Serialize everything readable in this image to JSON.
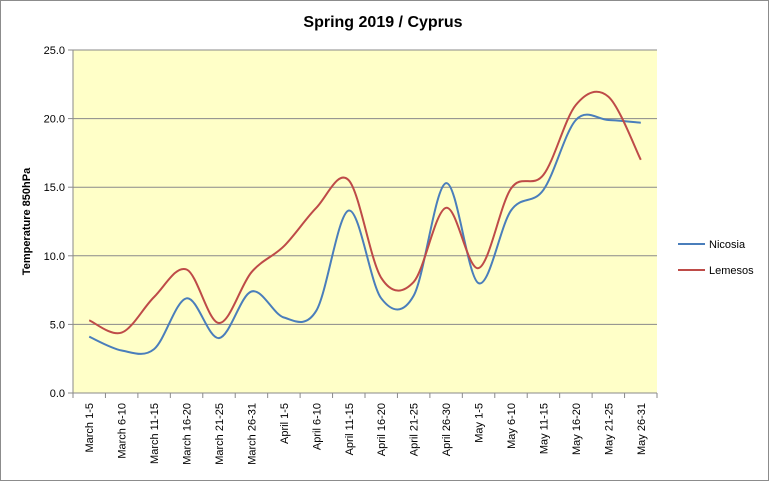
{
  "chart_data": {
    "type": "line",
    "title": "Spring 2019 / Cyprus",
    "xlabel": "",
    "ylabel": "Temperature 850hPa",
    "ylim": [
      0,
      25
    ],
    "yticks": [
      "0.0",
      "5.0",
      "10.0",
      "15.0",
      "20.0",
      "25.0"
    ],
    "grid": true,
    "legend_position": "right",
    "plot_background": "#ffffc8",
    "categories": [
      "March 1-5",
      "March 6-10",
      "March 11-15",
      "March 16-20",
      "March 21-25",
      "March 26-31",
      "April 1-5",
      "April 6-10",
      "April 11-15",
      "April 16-20",
      "April 21-25",
      "April 26-30",
      "May 1-5",
      "May 6-10",
      "May 11-15",
      "May 16-20",
      "May 21-25",
      "May 26-31"
    ],
    "series": [
      {
        "name": "Nicosia",
        "color": "#4a7ebb",
        "values": [
          4.1,
          3.1,
          3.2,
          6.9,
          4.0,
          7.4,
          5.5,
          6.0,
          13.3,
          6.9,
          7.1,
          15.3,
          8.0,
          13.3,
          14.8,
          19.9,
          19.9,
          19.7
        ]
      },
      {
        "name": "Lemesos",
        "color": "#be4b48",
        "values": [
          5.3,
          4.4,
          7.0,
          9.0,
          5.1,
          8.8,
          10.7,
          13.5,
          15.5,
          8.4,
          8.1,
          13.5,
          9.1,
          14.9,
          15.9,
          21.0,
          21.6,
          17.0
        ]
      }
    ]
  }
}
